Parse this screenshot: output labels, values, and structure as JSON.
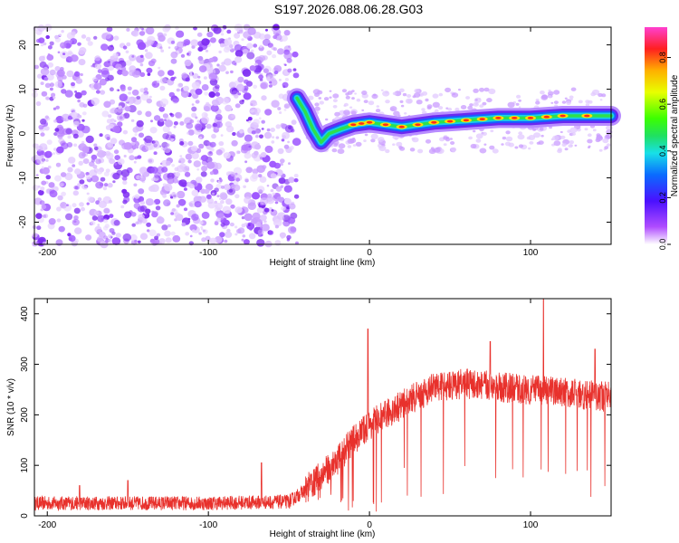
{
  "title": "S197.2026.088.06.28.G03",
  "chart_data": [
    {
      "type": "heatmap",
      "xlabel": "Height of straight line (km)",
      "ylabel": "Frequency (Hz)",
      "xlim": [
        -208,
        150
      ],
      "ylim": [
        -25,
        24
      ],
      "x_ticks": [
        -200,
        -100,
        0,
        100
      ],
      "y_ticks": [
        20,
        10,
        0,
        -10,
        -20
      ],
      "noise_region_x": [
        -208,
        -45
      ],
      "ridge": [
        {
          "x": -45,
          "y": 8
        },
        {
          "x": -40,
          "y": 5
        },
        {
          "x": -35,
          "y": 1
        },
        {
          "x": -30,
          "y": -2
        },
        {
          "x": -25,
          "y": 0
        },
        {
          "x": -18,
          "y": 1
        },
        {
          "x": -10,
          "y": 2
        },
        {
          "x": 0,
          "y": 2.5
        },
        {
          "x": 20,
          "y": 1.5
        },
        {
          "x": 40,
          "y": 2.5
        },
        {
          "x": 60,
          "y": 3
        },
        {
          "x": 80,
          "y": 3.5
        },
        {
          "x": 100,
          "y": 3.5
        },
        {
          "x": 120,
          "y": 4
        },
        {
          "x": 150,
          "y": 4
        }
      ],
      "colorbar": {
        "label": "Normalized spectral amplitude",
        "ticks": [
          0.0,
          0.2,
          0.4,
          0.6,
          0.8
        ],
        "range": [
          0,
          0.93
        ]
      }
    },
    {
      "type": "line",
      "xlabel": "Height of straight line (km)",
      "ylabel": "SNR (10 * v/v)",
      "xlim": [
        -208,
        150
      ],
      "ylim": [
        0,
        430
      ],
      "x_ticks": [
        -200,
        -100,
        0,
        100
      ],
      "y_ticks": [
        0,
        100,
        200,
        300,
        400
      ],
      "color": "#e8312c",
      "envelope": [
        {
          "x": -208,
          "y": 25
        },
        {
          "x": -100,
          "y": 25
        },
        {
          "x": -50,
          "y": 28
        },
        {
          "x": -40,
          "y": 50
        },
        {
          "x": -30,
          "y": 80
        },
        {
          "x": -20,
          "y": 110
        },
        {
          "x": -10,
          "y": 150
        },
        {
          "x": 0,
          "y": 180
        },
        {
          "x": 20,
          "y": 220
        },
        {
          "x": 40,
          "y": 255
        },
        {
          "x": 60,
          "y": 262
        },
        {
          "x": 80,
          "y": 255
        },
        {
          "x": 100,
          "y": 250
        },
        {
          "x": 120,
          "y": 245
        },
        {
          "x": 150,
          "y": 235
        }
      ],
      "spikes": [
        {
          "x": -180,
          "y": 60
        },
        {
          "x": -150,
          "y": 70
        },
        {
          "x": -67,
          "y": 105
        },
        {
          "x": -1,
          "y": 370
        },
        {
          "x": 75,
          "y": 345
        },
        {
          "x": 108,
          "y": 430
        },
        {
          "x": 140,
          "y": 330
        }
      ]
    }
  ]
}
